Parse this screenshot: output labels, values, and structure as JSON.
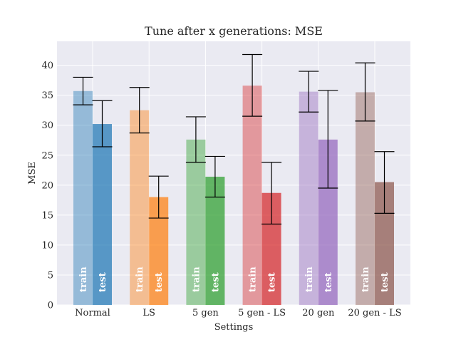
{
  "chart_data": {
    "type": "bar",
    "title": "Tune after x generations: MSE",
    "xlabel": "Settings",
    "ylabel": "MSE",
    "ylim": [
      0,
      44
    ],
    "yticks": [
      0,
      5,
      10,
      15,
      20,
      25,
      30,
      35,
      40
    ],
    "grid": true,
    "categories": [
      "Normal",
      "LS",
      "5 gen",
      "5 gen - LS",
      "20 gen",
      "20 gen - LS"
    ],
    "colors": [
      "#1f77b4",
      "#ff7f0e",
      "#2ca02c",
      "#d62728",
      "#9467bd",
      "#8c564b"
    ],
    "series": [
      {
        "name": "train",
        "values": [
          35.7,
          32.5,
          27.6,
          36.6,
          35.6,
          35.5
        ],
        "err_low": [
          33.4,
          28.7,
          23.8,
          31.5,
          32.2,
          30.7
        ],
        "err_high": [
          38.0,
          36.3,
          31.4,
          41.8,
          39.0,
          40.4
        ]
      },
      {
        "name": "test",
        "values": [
          30.2,
          18.0,
          21.4,
          18.7,
          27.6,
          20.5
        ],
        "err_low": [
          26.4,
          14.5,
          18.0,
          13.5,
          19.5,
          15.3
        ],
        "err_high": [
          34.1,
          21.5,
          24.8,
          23.8,
          35.8,
          25.6
        ]
      }
    ]
  }
}
